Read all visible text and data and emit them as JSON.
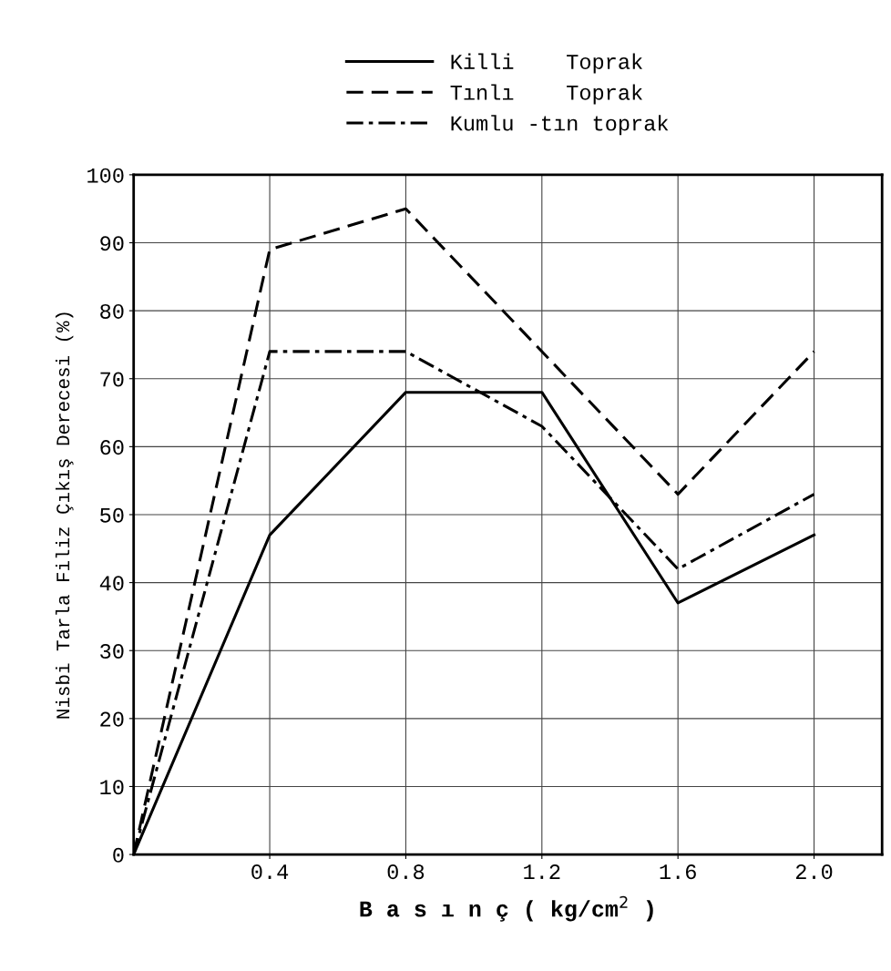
{
  "chart_data": {
    "type": "line",
    "xlabel": "B a s ı n ç ( kg/cm$^{2}$ )",
    "ylabel": "Nisbi Tarla Filiz Çıkış Derecesi (%)",
    "series": [
      {
        "name": "Killi    Toprak",
        "color": "#000000",
        "line_style": "solid",
        "x": [
          0,
          0.4,
          0.8,
          1.2,
          1.6,
          2.0
        ],
        "values": [
          0,
          47,
          68,
          68,
          37,
          47
        ]
      },
      {
        "name": "Tınlı    Toprak",
        "color": "#000000",
        "line_style": "dashed",
        "x": [
          0,
          0.4,
          0.8,
          1.6,
          2.0
        ],
        "values": [
          0,
          89,
          95,
          53,
          74
        ]
      },
      {
        "name": "Kumlu -tın toprak",
        "color": "#000000",
        "line_style": "dashdot",
        "x": [
          0,
          0.4,
          0.8,
          1.2,
          1.6,
          2.0
        ],
        "values": [
          0,
          74,
          74,
          63,
          42,
          53
        ]
      }
    ],
    "xlim": [
      0,
      2.2
    ],
    "xticks": [
      0.4,
      0.8,
      1.2,
      1.6,
      {
        "value": 2,
        "label": "2.0"
      }
    ],
    "ylim": [
      0,
      100
    ],
    "yticks": [
      0,
      10,
      20,
      30,
      40,
      50,
      60,
      70,
      80,
      90,
      100
    ],
    "grid": true,
    "legend": "top"
  }
}
